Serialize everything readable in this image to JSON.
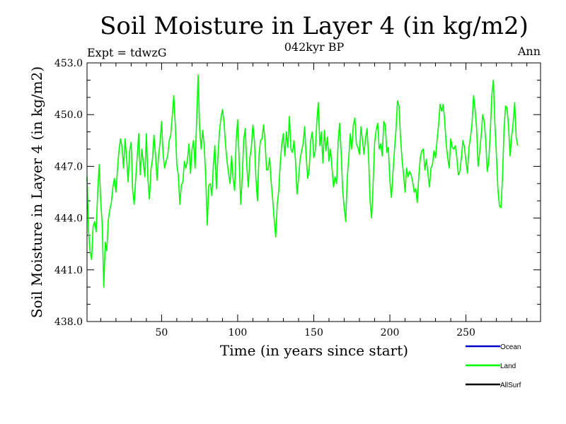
{
  "chart_data": {
    "type": "line",
    "title": "Soil Moisture in Layer 4 (in kg/m2)",
    "subtitle": "042kyr BP",
    "experiment_label": "Expt = tdwzG",
    "period_label": "Ann",
    "xlabel": "Time (in years since start)",
    "ylabel": "Soil Moisture in Layer 4 (in kg/m2)",
    "xlim": [
      1,
      299
    ],
    "ylim": [
      438.0,
      453.0
    ],
    "x_ticks": [
      50,
      100,
      150,
      200,
      250
    ],
    "y_ticks": [
      438.0,
      441.0,
      444.0,
      447.0,
      450.0,
      453.0
    ],
    "y_tick_labels": [
      "438.0",
      "441.0",
      "444.0",
      "447.0",
      "450.0",
      "453.0"
    ],
    "legend": [
      {
        "name": "Ocean",
        "color": "#0000cc"
      },
      {
        "name": "Land",
        "color": "#00ff00"
      },
      {
        "name": "AllSurf",
        "color": "#000000"
      }
    ],
    "series": [
      {
        "name": "Land",
        "color": "#00ff00",
        "x_start": 1,
        "values": [
          446.4,
          443.3,
          442.1,
          441.6,
          443.5,
          443.8,
          443.2,
          445.5,
          447.1,
          445.0,
          443.6,
          440.0,
          442.6,
          442.1,
          443.9,
          444.5,
          444.9,
          445.8,
          446.3,
          445.5,
          446.8,
          447.9,
          448.6,
          448.1,
          446.9,
          448.6,
          447.5,
          446.1,
          447.9,
          448.4,
          445.6,
          444.8,
          446.3,
          447.6,
          448.9,
          446.5,
          448.0,
          447.2,
          446.4,
          448.9,
          446.3,
          445.1,
          446.8,
          447.4,
          448.8,
          447.7,
          446.2,
          447.6,
          448.4,
          449.6,
          447.7,
          446.9,
          447.3,
          447.6,
          448.5,
          448.8,
          449.9,
          451.1,
          449.4,
          447.1,
          446.5,
          444.8,
          445.9,
          446.1,
          447.3,
          446.9,
          447.4,
          448.3,
          446.6,
          448.0,
          448.5,
          446.9,
          449.6,
          452.3,
          449.2,
          448.0,
          449.1,
          448.2,
          446.4,
          443.6,
          445.9,
          446.0,
          445.3,
          447.0,
          448.2,
          445.7,
          447.5,
          449.0,
          449.8,
          450.3,
          449.6,
          448.3,
          447.3,
          446.6,
          446.0,
          447.6,
          446.3,
          445.6,
          448.5,
          449.7,
          447.3,
          444.8,
          446.4,
          448.6,
          449.2,
          447.0,
          445.8,
          447.5,
          448.1,
          449.4,
          448.5,
          446.3,
          445.0,
          447.6,
          448.5,
          448.6,
          449.4,
          448.4,
          446.8,
          446.8,
          447.5,
          446.1,
          445.1,
          443.9,
          442.9,
          444.8,
          445.6,
          447.2,
          448.3,
          448.9,
          447.6,
          449.0,
          448.1,
          449.9,
          448.0,
          447.8,
          448.5,
          447.3,
          445.4,
          446.3,
          447.4,
          447.9,
          448.3,
          449.3,
          447.6,
          446.3,
          446.8,
          448.5,
          449.0,
          447.5,
          447.9,
          449.6,
          450.7,
          448.2,
          449.0,
          447.2,
          449.1,
          447.9,
          448.7,
          447.3,
          448.0,
          446.9,
          445.8,
          446.4,
          446.0,
          448.4,
          449.5,
          447.8,
          445.6,
          444.6,
          443.8,
          446.3,
          447.5,
          448.9,
          448.0,
          449.4,
          449.8,
          448.3,
          448.1,
          447.7,
          449.3,
          448.5,
          447.7,
          448.6,
          449.2,
          447.6,
          445.0,
          444.0,
          446.0,
          448.4,
          449.1,
          449.5,
          448.0,
          448.3,
          447.6,
          449.6,
          449.4,
          447.8,
          448.1,
          446.2,
          445.2,
          446.6,
          447.9,
          449.1,
          450.8,
          450.5,
          448.7,
          447.4,
          446.5,
          445.5,
          446.9,
          446.4,
          446.7,
          446.5,
          446.1,
          445.5,
          445.7,
          444.9,
          446.4,
          447.5,
          447.9,
          448.0,
          446.8,
          447.4,
          446.6,
          445.8,
          446.9,
          447.1,
          447.9,
          447.5,
          448.5,
          449.4,
          450.6,
          450.2,
          450.6,
          449.7,
          448.3,
          447.5,
          446.9,
          448.6,
          448.1,
          448.0,
          448.2,
          447.5,
          446.5,
          446.7,
          447.5,
          448.5,
          448.1,
          447.3,
          446.6,
          448.1,
          448.7,
          449.5,
          451.1,
          450.3,
          449.2,
          447.0,
          447.8,
          448.8,
          450.0,
          449.6,
          448.5,
          446.7,
          447.3,
          449.0,
          451.1,
          452.0,
          449.5,
          447.7,
          445.7,
          444.7,
          444.6,
          446.3,
          449.1,
          450.5,
          450.4,
          449.3,
          447.6,
          448.7,
          449.5,
          450.7,
          448.7,
          448.2
        ]
      }
    ]
  }
}
